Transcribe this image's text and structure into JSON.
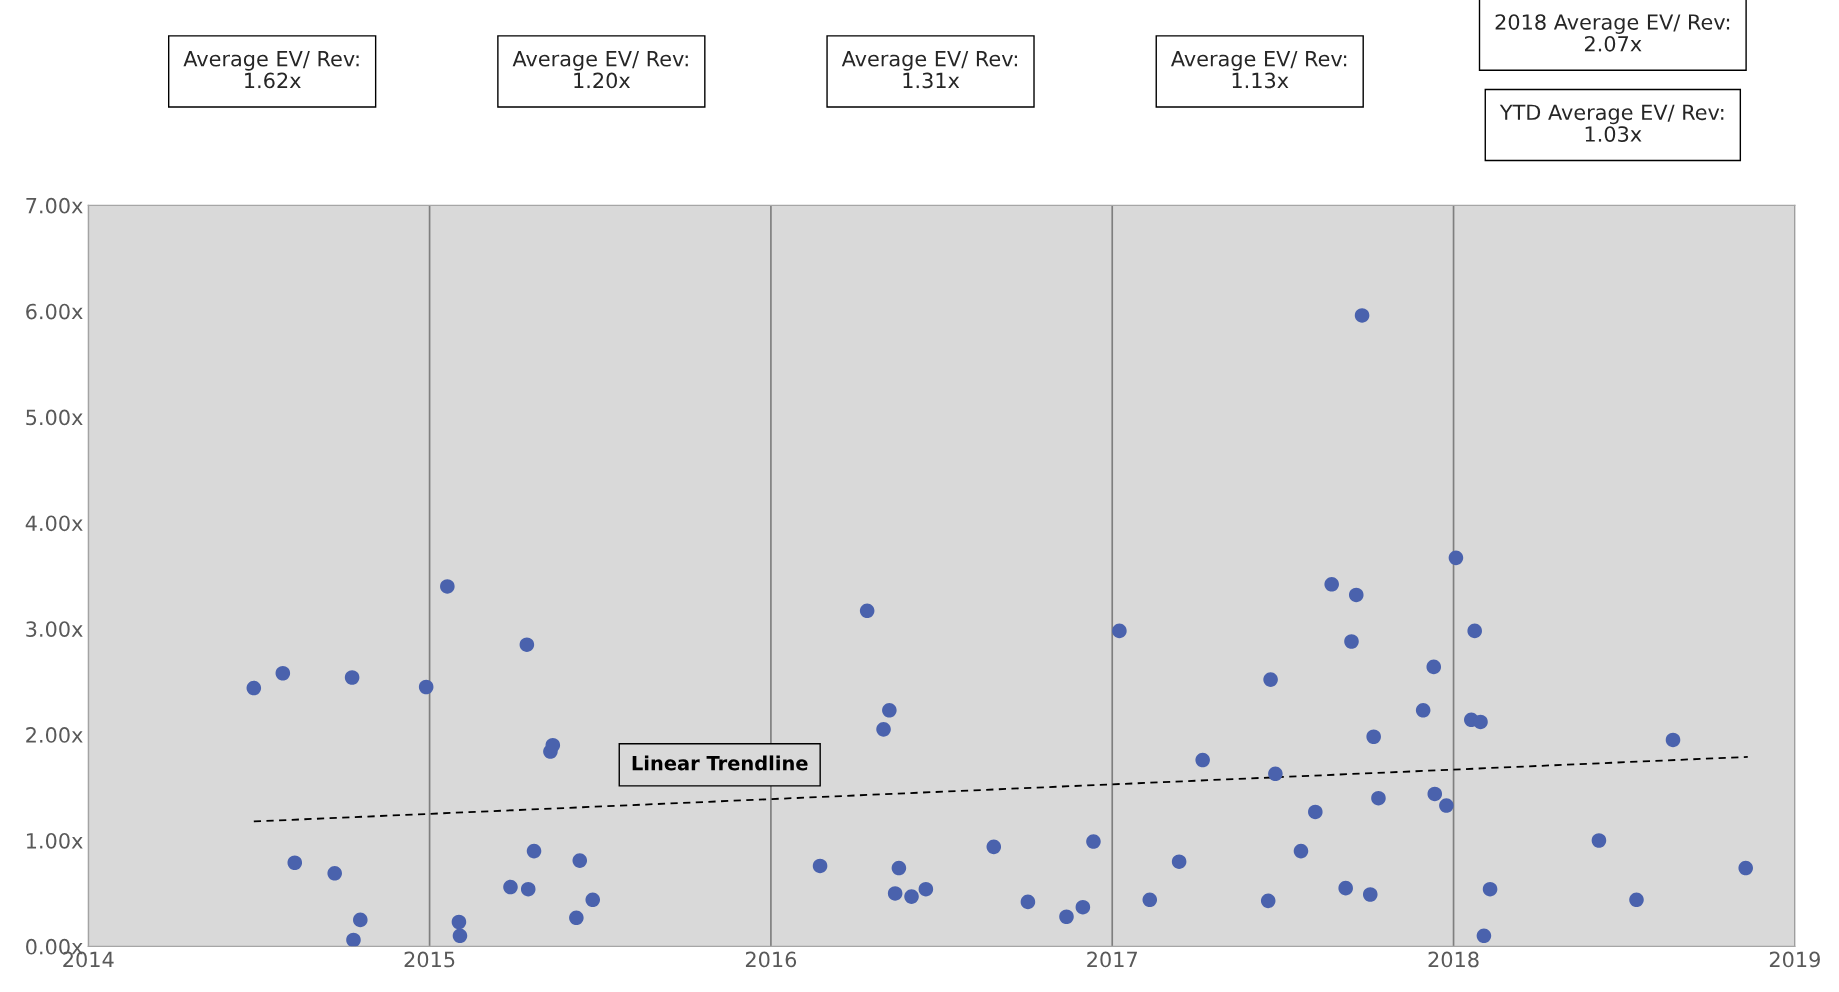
{
  "chart_data": {
    "type": "scatter",
    "xlim": [
      2014,
      2019
    ],
    "xticks": [
      2014,
      2015,
      2016,
      2017,
      2018,
      2019
    ],
    "ylim": [
      0,
      7
    ],
    "yticks": [
      {
        "value": 0,
        "label": "0.00x"
      },
      {
        "value": 1,
        "label": "1.00x"
      },
      {
        "value": 2,
        "label": "2.00x"
      },
      {
        "value": 3,
        "label": "3.00x"
      },
      {
        "value": 4,
        "label": "4.00x"
      },
      {
        "value": 5,
        "label": "5.00x"
      },
      {
        "value": 6,
        "label": "6.00x"
      },
      {
        "value": 7,
        "label": "7.00x"
      }
    ],
    "grid": "x",
    "legend": false,
    "annotations": [
      "Average EV/ Rev:\n1.62x",
      "Average EV/ Rev:\n1.20x",
      "Average EV/ Rev:\n1.31x",
      "Average EV/ Rev:\n1.13x",
      "2018 Average EV/ Rev:\n2.07x",
      "YTD Average EV/ Rev:\n1.03x"
    ],
    "series": [
      {
        "marker": "circle",
        "color": "#4a62ad",
        "x": [
          2014.485,
          2014.57,
          2014.605,
          2014.722,
          2014.773,
          2014.777,
          2014.797,
          2014.99,
          2015.052,
          2015.086,
          2015.089,
          2015.237,
          2015.285,
          2015.289,
          2015.306,
          2015.354,
          2015.361,
          2015.43,
          2015.44,
          2015.478,
          2016.144,
          2016.282,
          2016.33,
          2016.347,
          2016.364,
          2016.375,
          2016.412,
          2016.454,
          2016.653,
          2016.753,
          2016.866,
          2016.914,
          2016.945,
          2017.021,
          2017.11,
          2017.196,
          2017.265,
          2017.457,
          2017.464,
          2017.478,
          2017.553,
          2017.595,
          2017.643,
          2017.684,
          2017.701,
          2017.715,
          2017.732,
          2017.756,
          2017.766,
          2017.78,
          2017.911,
          2017.942,
          2017.945,
          2017.979,
          2018.007,
          2018.052,
          2018.062,
          2018.079,
          2018.089,
          2018.107,
          2018.426,
          2018.536,
          2018.643,
          2018.856
        ],
        "values": [
          2.44,
          2.58,
          0.79,
          0.69,
          2.54,
          0.06,
          0.25,
          2.45,
          3.4,
          0.23,
          0.1,
          0.56,
          2.85,
          0.54,
          0.9,
          1.84,
          1.9,
          0.27,
          0.81,
          0.44,
          0.76,
          3.17,
          2.05,
          2.23,
          0.5,
          0.74,
          0.47,
          0.54,
          0.94,
          0.42,
          0.28,
          0.37,
          0.99,
          2.98,
          0.44,
          0.8,
          1.76,
          0.43,
          2.52,
          1.63,
          0.9,
          1.27,
          3.42,
          0.55,
          2.88,
          3.32,
          5.96,
          0.49,
          1.98,
          1.4,
          2.23,
          2.64,
          1.44,
          1.33,
          3.67,
          2.14,
          2.98,
          2.12,
          0.1,
          0.54,
          1.0,
          0.44,
          1.95,
          0.74
        ]
      },
      {
        "type": "line",
        "name": "Linear Trendline",
        "color": "#000000",
        "line_style": "dashed",
        "marker": "none",
        "x": [
          2014.485,
          2018.862
        ],
        "values": [
          1.18,
          1.79
        ]
      }
    ]
  }
}
